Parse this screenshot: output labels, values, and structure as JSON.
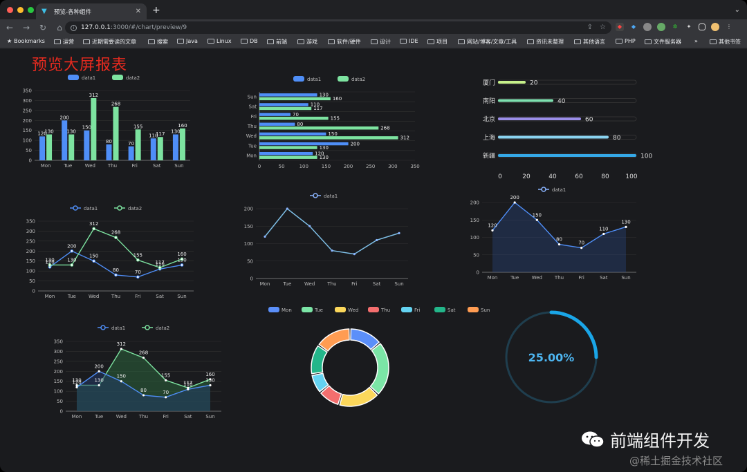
{
  "browser": {
    "tab_title": "预览-各种组件",
    "url_host": "127.0.0.1",
    "url_path": ":3000/#/chart/preview/9",
    "bookmarks": [
      "Bookmarks",
      "运营",
      "近期需要读的文章",
      "搜索",
      "Java",
      "Linux",
      "DB",
      "前端",
      "游戏",
      "软件/硬件",
      "设计",
      "IDE",
      "项目",
      "网站/博客/文章/工具",
      "资讯未整理",
      "其他语言",
      "PHP",
      "文件服务器",
      "»",
      "其他书签"
    ]
  },
  "page": {
    "title": "预览大屏报表"
  },
  "chart_data": [
    {
      "type": "bar",
      "categories": [
        "Mon",
        "Tue",
        "Wed",
        "Thu",
        "Fri",
        "Sat",
        "Sun"
      ],
      "series": [
        {
          "name": "data1",
          "values": [
            120,
            200,
            150,
            80,
            70,
            110,
            130
          ]
        },
        {
          "name": "data2",
          "values": [
            130,
            130,
            312,
            268,
            155,
            117,
            160
          ]
        }
      ],
      "ylim": [
        0,
        350
      ],
      "yticks": [
        0,
        50,
        100,
        150,
        200,
        250,
        300,
        350
      ],
      "legend": "top"
    },
    {
      "type": "bar",
      "orientation": "horizontal",
      "categories": [
        "Mon",
        "Tue",
        "Wed",
        "Thu",
        "Fri",
        "Sat",
        "Sun"
      ],
      "series": [
        {
          "name": "data1",
          "values": [
            120,
            200,
            150,
            80,
            70,
            110,
            130
          ]
        },
        {
          "name": "data2",
          "values": [
            130,
            130,
            312,
            268,
            155,
            117,
            160
          ]
        }
      ],
      "xlim": [
        0,
        350
      ],
      "xticks": [
        0,
        50,
        100,
        150,
        200,
        250,
        300,
        350
      ],
      "legend": "top"
    },
    {
      "type": "bar",
      "orientation": "horizontal",
      "categories": [
        "厦门",
        "南阳",
        "北京",
        "上海",
        "新疆"
      ],
      "values": [
        20,
        40,
        60,
        80,
        100
      ],
      "xlim": [
        0,
        100
      ],
      "xticks": [
        0,
        20,
        40,
        60,
        80,
        100
      ]
    },
    {
      "type": "line",
      "categories": [
        "Mon",
        "Tue",
        "Wed",
        "Thu",
        "Fri",
        "Sat",
        "Sun"
      ],
      "series": [
        {
          "name": "data1",
          "values": [
            120,
            200,
            150,
            80,
            70,
            110,
            130
          ]
        },
        {
          "name": "data2",
          "values": [
            130,
            130,
            312,
            268,
            155,
            117,
            160
          ]
        }
      ],
      "ylim": [
        0,
        350
      ],
      "yticks": [
        0,
        50,
        100,
        150,
        200,
        250,
        300,
        350
      ],
      "legend": "top"
    },
    {
      "type": "line",
      "smooth": false,
      "categories": [
        "Mon",
        "Tue",
        "Wed",
        "Thu",
        "Fri",
        "Sat",
        "Sun"
      ],
      "series": [
        {
          "name": "data1",
          "values": [
            120,
            200,
            150,
            80,
            70,
            110,
            130
          ]
        }
      ],
      "ylim": [
        0,
        200
      ],
      "yticks": [
        0,
        50,
        100,
        150,
        200
      ],
      "legend": "top"
    },
    {
      "type": "area",
      "categories": [
        "Mon",
        "Tue",
        "Wed",
        "Thu",
        "Fri",
        "Sat",
        "Sun"
      ],
      "series": [
        {
          "name": "data1",
          "values": [
            120,
            200,
            150,
            80,
            70,
            110,
            130
          ]
        }
      ],
      "ylim": [
        0,
        200
      ],
      "yticks": [
        0,
        50,
        100,
        150,
        200
      ],
      "legend": "top"
    },
    {
      "type": "area",
      "categories": [
        "Mon",
        "Tue",
        "Wed",
        "Thu",
        "Fri",
        "Sat",
        "Sun"
      ],
      "series": [
        {
          "name": "data1",
          "values": [
            120,
            200,
            150,
            80,
            70,
            110,
            130
          ]
        },
        {
          "name": "data2",
          "values": [
            130,
            130,
            312,
            268,
            155,
            117,
            160
          ]
        }
      ],
      "ylim": [
        0,
        350
      ],
      "yticks": [
        0,
        50,
        100,
        150,
        200,
        250,
        300,
        350
      ],
      "legend": "top"
    },
    {
      "type": "pie",
      "style": "donut",
      "categories": [
        "Mon",
        "Tue",
        "Wed",
        "Thu",
        "Fri",
        "Sat",
        "Sun"
      ],
      "values": [
        120,
        200,
        150,
        80,
        70,
        110,
        130
      ],
      "legend": "top"
    },
    {
      "type": "gauge",
      "value": 25,
      "label": "25.00%"
    }
  ],
  "colors": {
    "data1": "#4f8ef7",
    "data2": "#7de3a0",
    "pie": [
      "#5b8ff9",
      "#7be5a6",
      "#fbd75b",
      "#f46e6e",
      "#64d3f2",
      "#23b68a",
      "#ff9c52"
    ],
    "bars3": [
      "#c6f08a",
      "#7ee0b0",
      "#9a8de8",
      "#8ad3f0",
      "#35a8e6"
    ]
  },
  "watermark": {
    "brand": "前端组件开发",
    "site": "@稀土掘金技术社区"
  }
}
